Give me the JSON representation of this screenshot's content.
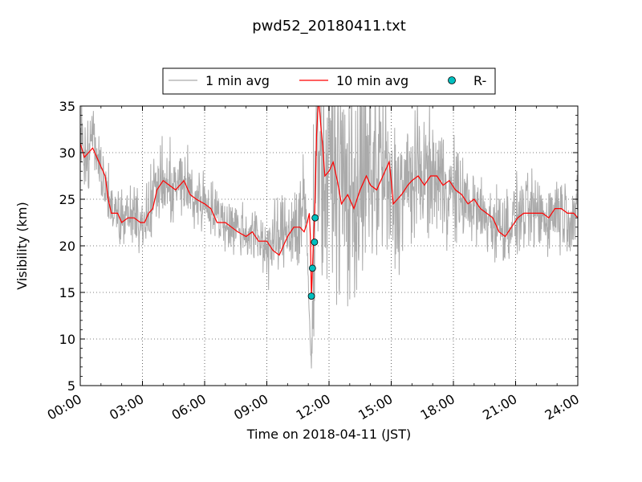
{
  "chart_data": {
    "type": "line",
    "title": "pwd52_20180411.txt",
    "xlabel": "Time on 2018-04-11 (JST)",
    "ylabel": "Visibility (km)",
    "x_unit": "hour of day (JST)",
    "xlim": [
      0,
      24
    ],
    "ylim": [
      5,
      35
    ],
    "x_ticks": [
      0,
      3,
      6,
      9,
      12,
      15,
      18,
      21,
      24
    ],
    "x_tick_labels": [
      "00:00",
      "03:00",
      "06:00",
      "09:00",
      "12:00",
      "15:00",
      "18:00",
      "21:00",
      "24:00"
    ],
    "y_ticks": [
      5,
      10,
      15,
      20,
      25,
      30,
      35
    ],
    "y_tick_labels": [
      "5",
      "10",
      "15",
      "20",
      "25",
      "30",
      "35"
    ],
    "grid": true,
    "legend_position": "top-center",
    "series": [
      {
        "name": "1 min avg",
        "kind": "noisy-line",
        "color": "#aaaaaa",
        "x": [
          0,
          0.3,
          0.6,
          1.0,
          1.3,
          1.6,
          2.0,
          2.5,
          2.9,
          3.3,
          3.7,
          4.0,
          4.5,
          5.0,
          5.5,
          6.0,
          6.5,
          7.0,
          7.5,
          8.0,
          8.5,
          9.0,
          9.5,
          10.0,
          10.5,
          10.9,
          11.05,
          11.15,
          11.25,
          11.35,
          11.5,
          11.7,
          12.0,
          12.5,
          13.0,
          13.5,
          14.0,
          14.5,
          15.0,
          15.5,
          16.0,
          16.5,
          17.0,
          17.5,
          18.0,
          18.5,
          19.0,
          19.5,
          20.0,
          20.5,
          21.0,
          21.5,
          22.0,
          22.5,
          23.0,
          23.5,
          24.0
        ],
        "values": [
          31,
          30,
          30.5,
          28.5,
          26,
          23.5,
          23,
          23,
          22.5,
          24,
          26.5,
          26.5,
          26,
          27,
          25,
          25,
          23.5,
          22.5,
          22,
          21.5,
          21,
          20,
          20.5,
          22,
          22,
          24,
          12,
          7,
          20,
          30,
          32,
          26,
          29,
          27,
          25.5,
          26,
          28,
          29,
          24.5,
          26,
          27,
          28,
          27.5,
          27,
          25.5,
          25,
          24,
          23,
          22.5,
          22,
          23,
          23.5,
          23.5,
          23,
          24,
          23.5,
          23
        ],
        "noise_amplitude": [
          2,
          2,
          2,
          1.5,
          1.5,
          1.5,
          1.5,
          1.5,
          1.5,
          2,
          2,
          2,
          2,
          2,
          2,
          1.5,
          1.5,
          1.5,
          1.5,
          1.5,
          1.5,
          2,
          2,
          2,
          3,
          3,
          0.5,
          0.5,
          5,
          5,
          5,
          6,
          6,
          6,
          6,
          6,
          6,
          6,
          4,
          4,
          4,
          3,
          3,
          3,
          3,
          2,
          2,
          2,
          2,
          2,
          2,
          2,
          2,
          2,
          2,
          2,
          2
        ]
      },
      {
        "name": "10 min avg",
        "kind": "line",
        "color": "#ff0000",
        "x": [
          0,
          0.2,
          0.4,
          0.6,
          0.8,
          1.0,
          1.2,
          1.35,
          1.5,
          1.8,
          2.0,
          2.3,
          2.6,
          2.9,
          3.1,
          3.3,
          3.5,
          3.7,
          4.0,
          4.3,
          4.6,
          4.8,
          5.0,
          5.3,
          5.6,
          6.0,
          6.3,
          6.6,
          7.0,
          7.3,
          7.6,
          8.0,
          8.3,
          8.6,
          9.0,
          9.3,
          9.6,
          10.0,
          10.3,
          10.6,
          10.8,
          10.95,
          11.05,
          11.1,
          11.15,
          11.2,
          11.25,
          11.3,
          11.35,
          11.4,
          11.5,
          11.6,
          11.7,
          11.8,
          12.0,
          12.2,
          12.4,
          12.6,
          12.9,
          13.2,
          13.5,
          13.8,
          14.0,
          14.3,
          14.6,
          14.9,
          15.0,
          15.1,
          15.3,
          15.5,
          15.8,
          16.0,
          16.3,
          16.6,
          16.9,
          17.2,
          17.5,
          17.8,
          18.1,
          18.4,
          18.7,
          19.0,
          19.3,
          19.6,
          19.9,
          20.2,
          20.5,
          20.8,
          21.1,
          21.4,
          21.7,
          22.0,
          22.3,
          22.6,
          22.9,
          23.2,
          23.5,
          23.8,
          24.0
        ],
        "values": [
          31,
          29.5,
          30,
          30.5,
          29.5,
          28.5,
          27.5,
          25,
          23.5,
          23.5,
          22.5,
          23,
          23,
          22.5,
          22.5,
          23.5,
          24,
          26,
          27,
          26.5,
          26,
          26.5,
          27,
          25.5,
          25,
          24.5,
          24,
          22.5,
          22.5,
          22,
          21.5,
          21,
          21.5,
          20.5,
          20.5,
          19.5,
          19,
          21,
          22,
          22,
          21.5,
          22.5,
          23.5,
          21,
          14.5,
          17.5,
          20.5,
          23,
          27,
          32,
          36,
          33,
          30.5,
          27.5,
          28,
          29,
          27,
          24.5,
          25.5,
          24,
          26,
          27.5,
          26.5,
          26,
          27.5,
          29,
          27,
          24.5,
          25,
          25.5,
          26.5,
          27,
          27.5,
          26.5,
          27.5,
          27.5,
          26.5,
          27,
          26,
          25.5,
          24.5,
          25,
          24,
          23.5,
          23,
          21.5,
          21,
          22,
          23,
          23.5,
          23.5,
          23.5,
          23.5,
          23,
          24,
          24,
          23.5,
          23.5,
          23
        ]
      },
      {
        "name": "R-",
        "kind": "scatter",
        "color": "#00bfbf",
        "x": [
          11.15,
          11.2,
          11.3,
          11.33
        ],
        "values": [
          14.6,
          17.6,
          20.4,
          23.0
        ]
      }
    ]
  }
}
